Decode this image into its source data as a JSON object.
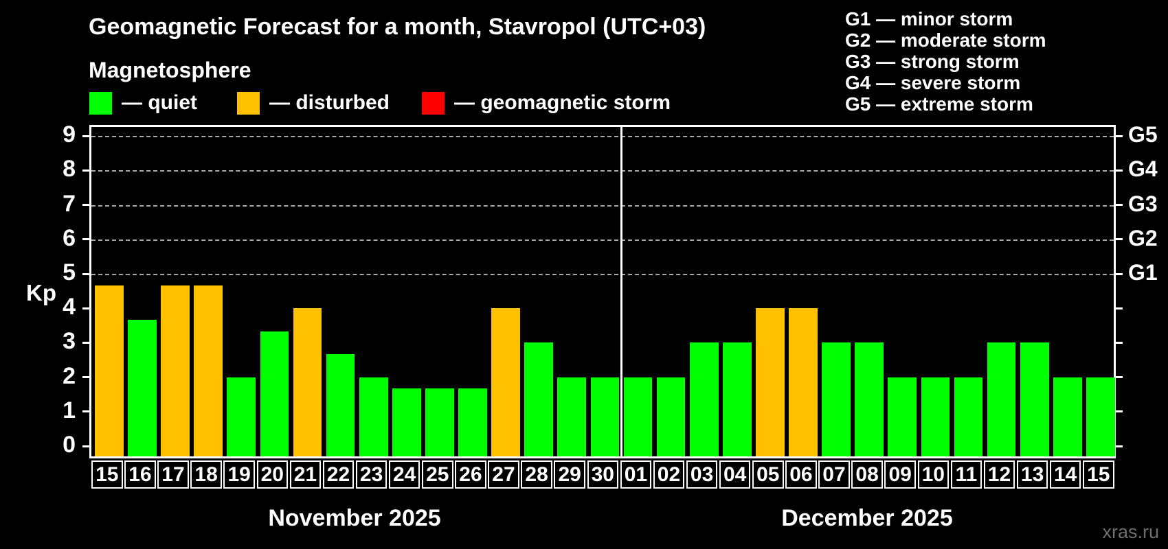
{
  "header": {
    "title": "Geomagnetic Forecast for a month, Stavropol (UTC+03)",
    "subtitle": "Magnetosphere"
  },
  "legend": {
    "items": [
      {
        "label": "— quiet",
        "color": "#00ff00"
      },
      {
        "label": "— disturbed",
        "color": "#ffc000"
      },
      {
        "label": "— geomagnetic storm",
        "color": "#ff0000"
      }
    ]
  },
  "g_scale_legend": {
    "items": [
      "G1 — minor storm",
      "G2 — moderate storm",
      "G3 — strong storm",
      "G4 — severe storm",
      "G5 — extreme storm"
    ]
  },
  "axes": {
    "y_label": "Kp",
    "y_tick_labels": [
      "0",
      "1",
      "2",
      "3",
      "4",
      "5",
      "6",
      "7",
      "8",
      "9"
    ],
    "right_labels": [
      {
        "kp": 5,
        "label": "G1"
      },
      {
        "kp": 6,
        "label": "G2"
      },
      {
        "kp": 7,
        "label": "G3"
      },
      {
        "kp": 8,
        "label": "G4"
      },
      {
        "kp": 9,
        "label": "G5"
      }
    ],
    "gridlines_at": [
      5,
      6,
      7,
      8,
      9
    ]
  },
  "months": [
    {
      "name": "November 2025"
    },
    {
      "name": "December 2025"
    }
  ],
  "watermark": "xras.ru",
  "colors": {
    "quiet": "#00ff00",
    "disturbed": "#ffc000",
    "storm": "#ff0000",
    "background": "#000000",
    "axis": "#ffffff",
    "gridline": "#aaaaaa",
    "watermark": "#6f6f6f"
  },
  "chart_data": {
    "type": "bar",
    "title": "Geomagnetic Forecast for a month, Stavropol (UTC+03)",
    "ylabel": "Kp",
    "ylim": [
      0,
      9.35
    ],
    "grid": "dashed horizontal lines at Kp 5,6,7,8,9",
    "legend_position": "top",
    "series": [
      {
        "month": "November 2025",
        "points": [
          {
            "day": "15",
            "kp": 4.67,
            "status": "disturbed"
          },
          {
            "day": "16",
            "kp": 3.67,
            "status": "quiet"
          },
          {
            "day": "17",
            "kp": 4.67,
            "status": "disturbed"
          },
          {
            "day": "18",
            "kp": 4.67,
            "status": "disturbed"
          },
          {
            "day": "19",
            "kp": 2,
            "status": "quiet"
          },
          {
            "day": "20",
            "kp": 3.33,
            "status": "quiet"
          },
          {
            "day": "21",
            "kp": 4,
            "status": "disturbed"
          },
          {
            "day": "22",
            "kp": 2.67,
            "status": "quiet"
          },
          {
            "day": "23",
            "kp": 2,
            "status": "quiet"
          },
          {
            "day": "24",
            "kp": 1.67,
            "status": "quiet"
          },
          {
            "day": "25",
            "kp": 1.67,
            "status": "quiet"
          },
          {
            "day": "26",
            "kp": 1.67,
            "status": "quiet"
          },
          {
            "day": "27",
            "kp": 4,
            "status": "disturbed"
          },
          {
            "day": "28",
            "kp": 3,
            "status": "quiet"
          },
          {
            "day": "29",
            "kp": 2,
            "status": "quiet"
          },
          {
            "day": "30",
            "kp": 2,
            "status": "quiet"
          }
        ]
      },
      {
        "month": "December 2025",
        "points": [
          {
            "day": "01",
            "kp": 2,
            "status": "quiet"
          },
          {
            "day": "02",
            "kp": 2,
            "status": "quiet"
          },
          {
            "day": "03",
            "kp": 3,
            "status": "quiet"
          },
          {
            "day": "04",
            "kp": 3,
            "status": "quiet"
          },
          {
            "day": "05",
            "kp": 4,
            "status": "disturbed"
          },
          {
            "day": "06",
            "kp": 4,
            "status": "disturbed"
          },
          {
            "day": "07",
            "kp": 3,
            "status": "quiet"
          },
          {
            "day": "08",
            "kp": 3,
            "status": "quiet"
          },
          {
            "day": "09",
            "kp": 2,
            "status": "quiet"
          },
          {
            "day": "10",
            "kp": 2,
            "status": "quiet"
          },
          {
            "day": "11",
            "kp": 2,
            "status": "quiet"
          },
          {
            "day": "12",
            "kp": 3,
            "status": "quiet"
          },
          {
            "day": "13",
            "kp": 3,
            "status": "quiet"
          },
          {
            "day": "14",
            "kp": 2,
            "status": "quiet"
          },
          {
            "day": "15",
            "kp": 2,
            "status": "quiet"
          }
        ]
      }
    ]
  }
}
